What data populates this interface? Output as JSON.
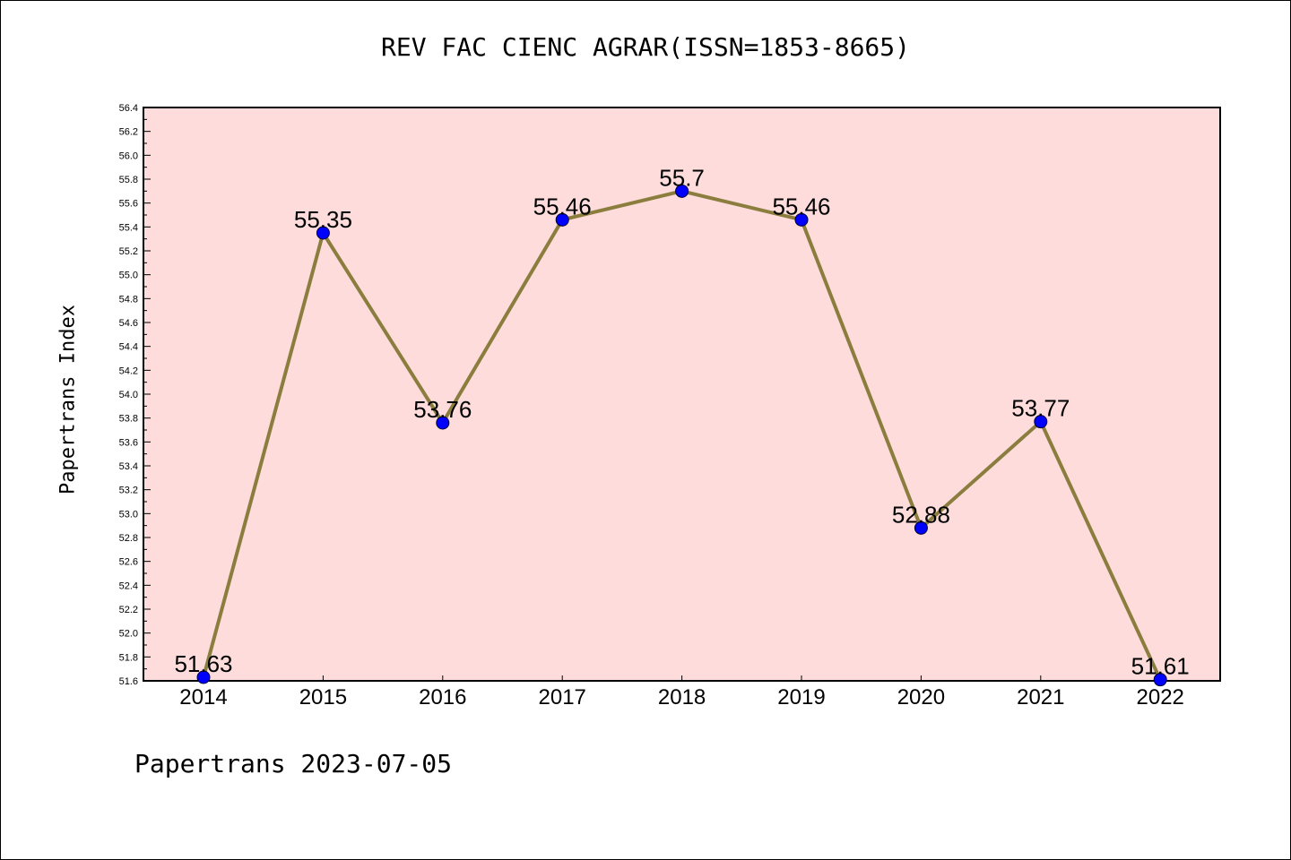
{
  "chart_data": {
    "type": "line",
    "title": "REV FAC CIENC AGRAR(ISSN=1853-8665)",
    "ylabel": "Papertrans Index",
    "xlabel": "",
    "categories": [
      "2014",
      "2015",
      "2016",
      "2017",
      "2018",
      "2019",
      "2020",
      "2021",
      "2022"
    ],
    "values": [
      51.63,
      55.35,
      53.76,
      55.46,
      55.7,
      55.46,
      52.88,
      53.77,
      51.61
    ],
    "data_labels": [
      "51.63",
      "55.35",
      "53.76",
      "55.46",
      "55.7",
      "55.46",
      "52.88",
      "53.77",
      "51.61"
    ],
    "ylim": [
      51.6,
      56.4
    ],
    "yticks": [
      "51.6",
      "51.8",
      "52.0",
      "52.2",
      "52.4",
      "52.6",
      "52.8",
      "53.0",
      "53.2",
      "53.4",
      "53.6",
      "53.8",
      "54.0",
      "54.2",
      "54.4",
      "54.6",
      "54.8",
      "55.0",
      "55.2",
      "55.4",
      "55.6",
      "55.8",
      "56.0",
      "56.2",
      "56.4"
    ],
    "grid": false,
    "colors": {
      "plot_background": "#fddcdb",
      "line": "#8b7d3e",
      "marker": "#0000ff"
    }
  },
  "footer": "Papertrans 2023-07-05"
}
